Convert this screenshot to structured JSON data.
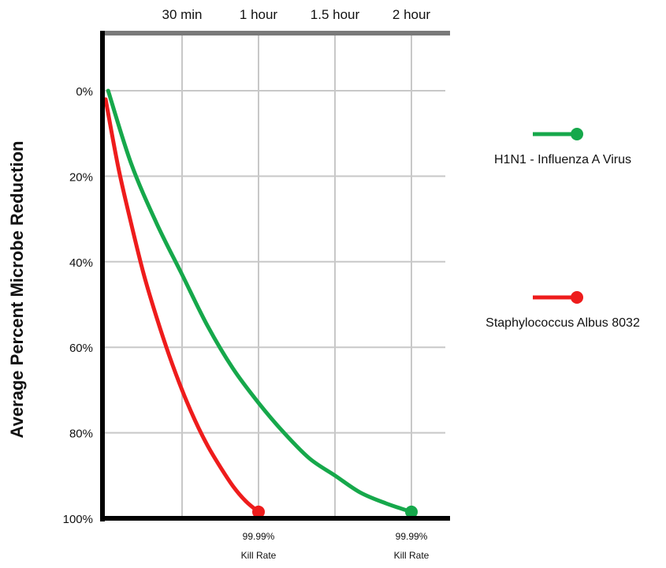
{
  "chart_data": {
    "type": "line",
    "ylabel": "Average Percent Microbe Reduction",
    "x_ticks": [
      "30 min",
      "1 hour",
      "1.5 hour",
      "2 hour"
    ],
    "x_tick_values_min": [
      30,
      60,
      90,
      120
    ],
    "x_range_min": [
      0,
      135
    ],
    "y_ticks": [
      "0%",
      "20%",
      "40%",
      "60%",
      "80%",
      "100%"
    ],
    "y_tick_values": [
      0,
      20,
      40,
      60,
      80,
      100
    ],
    "y_range": [
      -13,
      100
    ],
    "y_axis_inverted": true,
    "x_axis_position": "top",
    "grid": true,
    "legend_position": "right",
    "series": [
      {
        "name": "H1N1 - Influenza A Virus",
        "color": "#16a84b",
        "x_min": [
          1,
          10,
          20,
          30,
          40,
          50,
          60,
          70,
          80,
          90,
          100,
          110,
          120
        ],
        "y": [
          0,
          17,
          31,
          43,
          55,
          65,
          73,
          80,
          86,
          90,
          94,
          96.5,
          98.5
        ],
        "end_label": [
          "99.99%",
          "Kill Rate"
        ]
      },
      {
        "name": "Staphylococcus Albus 8032",
        "color": "#ee1c1c",
        "x_min": [
          0,
          5,
          10,
          15,
          20,
          25,
          30,
          35,
          40,
          45,
          50,
          55,
          60
        ],
        "y": [
          2,
          18,
          31,
          43,
          53,
          62,
          70,
          77,
          83,
          88,
          92.5,
          96,
          98.5
        ],
        "end_label": [
          "99.99%",
          "Kill Rate"
        ]
      }
    ]
  }
}
